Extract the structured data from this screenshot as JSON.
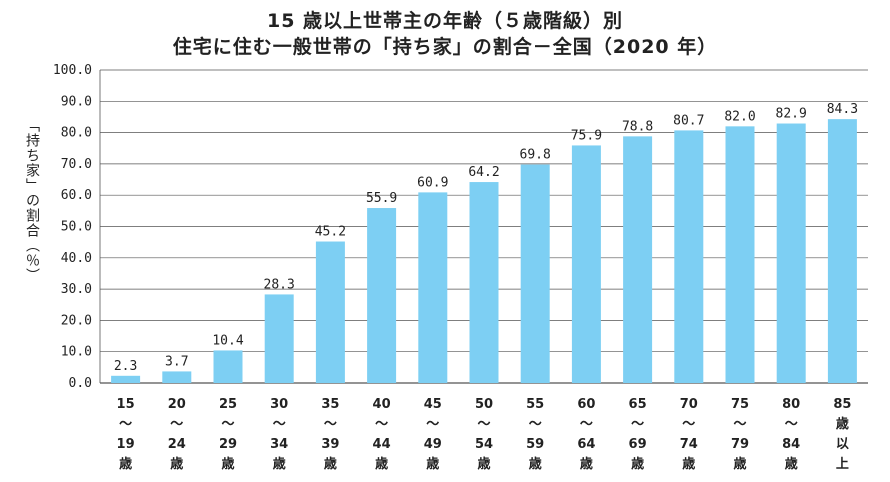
{
  "chart_data": {
    "type": "bar",
    "title": [
      "15 歳以上世帯主の年齢（５歳階級）別",
      "住宅に住む一般世帯の「持ち家」の割合－全国（2020 年）"
    ],
    "ylabel": "「持ち家」の割合（％）",
    "xlabel": "",
    "ylim": [
      0,
      100
    ],
    "yticks": [
      "100.0",
      "90.0",
      "80.0",
      "70.0",
      "60.0",
      "50.0",
      "40.0",
      "30.0",
      "20.0",
      "10.0",
      "0.0"
    ],
    "categories": [
      [
        "15",
        "～",
        "19",
        "歳"
      ],
      [
        "20",
        "～",
        "24",
        "歳"
      ],
      [
        "25",
        "～",
        "29",
        "歳"
      ],
      [
        "30",
        "～",
        "34",
        "歳"
      ],
      [
        "35",
        "～",
        "39",
        "歳"
      ],
      [
        "40",
        "～",
        "44",
        "歳"
      ],
      [
        "45",
        "～",
        "49",
        "歳"
      ],
      [
        "50",
        "～",
        "54",
        "歳"
      ],
      [
        "55",
        "～",
        "59",
        "歳"
      ],
      [
        "60",
        "～",
        "64",
        "歳"
      ],
      [
        "65",
        "～",
        "69",
        "歳"
      ],
      [
        "70",
        "～",
        "74",
        "歳"
      ],
      [
        "75",
        "～",
        "79",
        "歳"
      ],
      [
        "80",
        "～",
        "84",
        "歳"
      ],
      [
        "85",
        "歳",
        "以",
        "上"
      ]
    ],
    "values": [
      2.3,
      3.7,
      10.4,
      28.3,
      45.2,
      55.9,
      60.9,
      64.2,
      69.8,
      75.9,
      78.8,
      80.7,
      82.0,
      82.9,
      84.3
    ],
    "data_labels": [
      "2.3",
      "3.7",
      "10.4",
      "28.3",
      "45.2",
      "55.9",
      "60.9",
      "64.2",
      "69.8",
      "75.9",
      "78.8",
      "80.7",
      "82.0",
      "82.9",
      "84.3"
    ],
    "grid": true,
    "legend": "none",
    "bar_color": "#7dcff3",
    "grid_color": "#555555"
  }
}
